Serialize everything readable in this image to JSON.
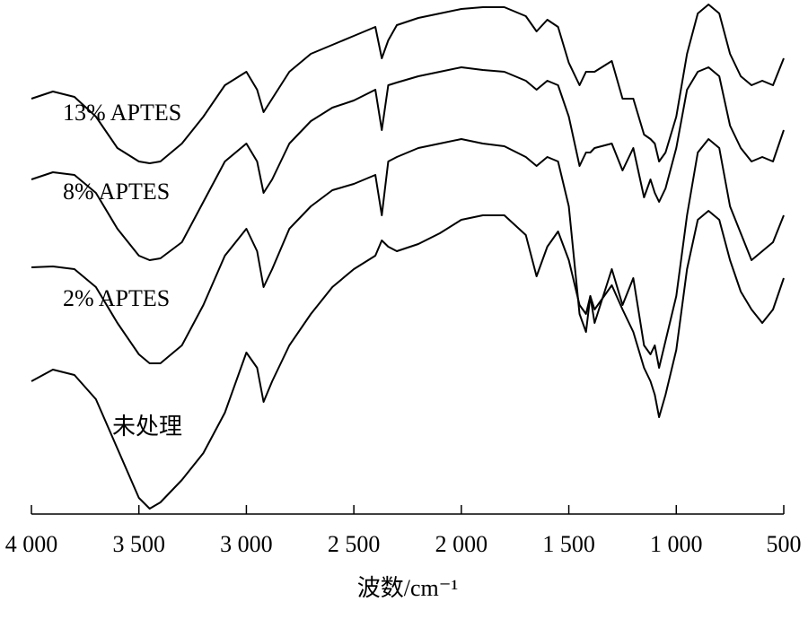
{
  "chart_data": {
    "type": "line",
    "x_label": "波数/cm⁻¹",
    "x": [
      4000,
      3900,
      3800,
      3700,
      3600,
      3500,
      3450,
      3400,
      3300,
      3200,
      3100,
      3000,
      2950,
      2920,
      2880,
      2800,
      2700,
      2600,
      2500,
      2400,
      2370,
      2340,
      2300,
      2200,
      2100,
      2000,
      1900,
      1800,
      1700,
      1650,
      1600,
      1550,
      1500,
      1450,
      1420,
      1400,
      1380,
      1300,
      1250,
      1200,
      1150,
      1120,
      1100,
      1080,
      1050,
      1000,
      950,
      900,
      850,
      800,
      750,
      700,
      650,
      600,
      550,
      500
    ],
    "series": [
      {
        "name": "13% APTES",
        "color": "#000000",
        "values": [
          463,
          471,
          465,
          443,
          408,
          393,
          391,
          393,
          413,
          443,
          478,
          493,
          473,
          448,
          463,
          493,
          513,
          523,
          533,
          543,
          508,
          528,
          545,
          553,
          558,
          563,
          565,
          565,
          555,
          538,
          551,
          543,
          503,
          478,
          493,
          493,
          493,
          505,
          463,
          463,
          423,
          418,
          413,
          393,
          403,
          443,
          513,
          558,
          568,
          558,
          513,
          488,
          478,
          483,
          478,
          508
        ]
      },
      {
        "name": "8% APTES",
        "color": "#000000",
        "values": [
          373,
          381,
          378,
          358,
          318,
          288,
          283,
          285,
          303,
          348,
          393,
          413,
          393,
          358,
          373,
          413,
          438,
          453,
          461,
          473,
          428,
          478,
          481,
          488,
          493,
          498,
          495,
          493,
          483,
          473,
          483,
          478,
          443,
          388,
          403,
          403,
          408,
          413,
          383,
          408,
          353,
          373,
          358,
          348,
          363,
          408,
          473,
          493,
          498,
          488,
          433,
          408,
          393,
          398,
          393,
          428
        ]
      },
      {
        "name": "2% APTES",
        "color": "#000000",
        "values": [
          275,
          276,
          273,
          253,
          213,
          178,
          168,
          168,
          188,
          233,
          288,
          318,
          293,
          253,
          273,
          318,
          343,
          361,
          368,
          378,
          333,
          393,
          398,
          408,
          413,
          418,
          413,
          410,
          398,
          388,
          398,
          393,
          343,
          223,
          203,
          243,
          213,
          273,
          233,
          263,
          188,
          178,
          188,
          163,
          193,
          243,
          333,
          403,
          418,
          408,
          343,
          313,
          283,
          293,
          303,
          333
        ]
      },
      {
        "name": "未处理",
        "color": "#000000",
        "values": [
          148,
          161,
          155,
          128,
          73,
          18,
          6,
          13,
          38,
          68,
          113,
          180,
          163,
          125,
          148,
          188,
          223,
          253,
          273,
          288,
          305,
          298,
          293,
          301,
          313,
          328,
          333,
          333,
          311,
          265,
          298,
          315,
          283,
          233,
          223,
          243,
          228,
          255,
          228,
          203,
          163,
          148,
          133,
          108,
          133,
          183,
          273,
          328,
          338,
          328,
          283,
          248,
          228,
          213,
          228,
          263
        ]
      }
    ],
    "xlim": [
      4000,
      500
    ],
    "xticks": [
      {
        "value": 4000,
        "label": "4 000"
      },
      {
        "value": 3500,
        "label": "3 500"
      },
      {
        "value": 3000,
        "label": "3 000"
      },
      {
        "value": 2500,
        "label": "2 500"
      },
      {
        "value": 2000,
        "label": "2 000"
      },
      {
        "value": 1500,
        "label": "1 500"
      },
      {
        "value": 1000,
        "label": "1 000"
      },
      500
    ],
    "ylim": [
      0,
      573
    ]
  }
}
